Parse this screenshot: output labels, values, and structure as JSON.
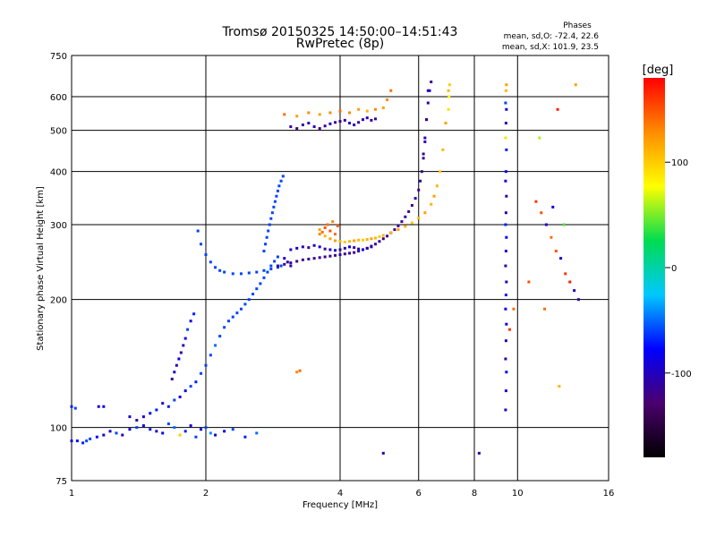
{
  "chart_data": {
    "type": "scatter",
    "title": "Tromsø 20150325 14:50:00–14:51:43",
    "subtitle": "RwPretec (8p)",
    "xlabel": "Frequency [MHz]",
    "ylabel": "Stationary phase Virtual Height [km]",
    "x_scale": "log",
    "y_scale": "log",
    "xlim": [
      1,
      16
    ],
    "ylim": [
      75,
      750
    ],
    "x_ticks": [
      1,
      2,
      4,
      6,
      8,
      10,
      16
    ],
    "y_ticks": [
      75,
      100,
      200,
      300,
      400,
      500,
      600,
      750
    ],
    "grid": true,
    "info": {
      "heading": "Phases",
      "line1": "mean, sd,O: -72.4, 22.6",
      "line2": "mean, sd,X: 101.9, 23.5"
    },
    "colorbar": {
      "label": "[deg]",
      "range": [
        -180,
        180
      ],
      "ticks": [
        100,
        0,
        -100
      ],
      "colors": [
        "#000000",
        "#4b006e",
        "#0000ff",
        "#00c8ff",
        "#00dc50",
        "#ffff00",
        "#ff8c00",
        "#ff0000"
      ]
    },
    "series": [
      {
        "x": [
          1.0,
          1.03,
          1.06,
          1.08,
          1.1,
          1.14,
          1.18,
          1.22,
          1.26,
          1.3,
          1.35,
          1.4,
          1.45,
          1.5,
          1.55,
          1.6,
          1.65,
          1.7,
          1.75,
          1.8,
          1.85,
          1.9,
          1.95,
          2.0,
          2.05,
          2.1,
          2.2,
          2.3,
          2.45,
          2.6
        ],
        "y": [
          93,
          93,
          92,
          93,
          94,
          95,
          96,
          98,
          97,
          96,
          99,
          100,
          101,
          99,
          98,
          97,
          102,
          100,
          96,
          98,
          101,
          95,
          99,
          100,
          97,
          96,
          98,
          99,
          95,
          97
        ],
        "phase": [
          -80,
          -75,
          -70,
          -60,
          -60,
          -80,
          -90,
          -90,
          -60,
          -100,
          -90,
          -60,
          -80,
          -70,
          -100,
          -80,
          -60,
          -50,
          100,
          -70,
          -90,
          -60,
          -80,
          -60,
          -40,
          -90,
          -80,
          -60,
          -70,
          -50
        ]
      },
      {
        "x": [
          1.0,
          1.02,
          1.15,
          1.18,
          1.35,
          1.4,
          1.45,
          1.5,
          1.55,
          1.6,
          1.65,
          1.7,
          1.75,
          1.8,
          1.85,
          1.9,
          1.95,
          2.0,
          2.05,
          2.1,
          2.15,
          2.2,
          2.25,
          2.3,
          2.35,
          2.4,
          2.45,
          2.5,
          2.55,
          2.6,
          2.65,
          2.7,
          2.75,
          2.8,
          2.85,
          2.9
        ],
        "y": [
          112,
          111,
          112,
          112,
          106,
          104,
          106,
          108,
          110,
          114,
          112,
          116,
          118,
          122,
          125,
          128,
          134,
          140,
          148,
          156,
          164,
          172,
          178,
          182,
          186,
          190,
          195,
          200,
          206,
          212,
          218,
          225,
          232,
          240,
          246,
          252
        ],
        "phase": [
          -70,
          -60,
          -90,
          -80,
          -100,
          -110,
          -90,
          -80,
          -70,
          -100,
          -70,
          -60,
          -90,
          -80,
          -60,
          -70,
          -60,
          -60,
          -60,
          -50,
          -60,
          -60,
          -60,
          -60,
          -60,
          -60,
          -60,
          -60,
          -60,
          -60,
          -60,
          -60,
          -60,
          -60,
          -60,
          -60
        ]
      },
      {
        "x": [
          1.68,
          1.7,
          1.72,
          1.74,
          1.76,
          1.78,
          1.8,
          1.82,
          1.85,
          1.88
        ],
        "y": [
          130,
          135,
          140,
          145,
          150,
          156,
          162,
          170,
          178,
          185
        ],
        "phase": [
          -110,
          -90,
          -100,
          -80,
          -110,
          -100,
          -80,
          -60,
          -90,
          -70
        ]
      },
      {
        "x": [
          1.92,
          1.95,
          2.0,
          2.05,
          2.1,
          2.15,
          2.2,
          2.3,
          2.4,
          2.5,
          2.6,
          2.7,
          2.8,
          2.9,
          2.95
        ],
        "y": [
          290,
          270,
          255,
          245,
          238,
          234,
          232,
          230,
          230,
          231,
          232,
          234,
          236,
          238,
          240
        ],
        "phase": [
          -60,
          -60,
          -60,
          -60,
          -60,
          -60,
          -60,
          -60,
          -60,
          -60,
          -60,
          -60,
          -60,
          -60,
          -60
        ]
      },
      {
        "x": [
          2.7,
          2.72,
          2.74,
          2.76,
          2.78,
          2.8,
          2.82,
          2.84,
          2.86,
          2.88,
          2.9,
          2.92,
          2.95,
          2.98,
          3.0,
          3.05,
          3.1
        ],
        "y": [
          260,
          270,
          280,
          290,
          300,
          310,
          320,
          330,
          340,
          350,
          360,
          370,
          380,
          390,
          250,
          245,
          240
        ],
        "phase": [
          -60,
          -60,
          -60,
          -60,
          -60,
          -60,
          -60,
          -60,
          -60,
          -60,
          -60,
          -60,
          -60,
          -60,
          -100,
          -110,
          -110
        ]
      },
      {
        "x": [
          2.9,
          3.0,
          3.1,
          3.2,
          3.3,
          3.4,
          3.5,
          3.6,
          3.7,
          3.8,
          3.9,
          4.0,
          4.1,
          4.2,
          4.3,
          4.4,
          4.5,
          4.6,
          4.7,
          4.8,
          4.9,
          5.0,
          5.1,
          5.2,
          5.3,
          5.4,
          5.5,
          5.6,
          5.7,
          5.8,
          5.9,
          6.0,
          6.05,
          6.1,
          6.15,
          6.2,
          6.25,
          6.3
        ],
        "y": [
          240,
          242,
          244,
          246,
          248,
          249,
          250,
          251,
          252,
          253,
          254,
          255,
          256,
          257,
          258,
          260,
          262,
          264,
          267,
          270,
          274,
          278,
          282,
          287,
          292,
          298,
          305,
          313,
          322,
          333,
          346,
          362,
          380,
          400,
          430,
          470,
          530,
          620
        ],
        "phase": [
          -110,
          -120,
          -110,
          -120,
          -120,
          -110,
          -120,
          -110,
          -120,
          -110,
          -120,
          -110,
          -120,
          -110,
          -120,
          -110,
          -120,
          -110,
          -120,
          -120,
          -110,
          -120,
          -110,
          -120,
          -120,
          -110,
          -120,
          -110,
          -120,
          -120,
          -110,
          -120,
          -110,
          -120,
          -120,
          -110,
          -120,
          -110
        ]
      },
      {
        "x": [
          3.1,
          3.2,
          3.3,
          3.4,
          3.5,
          3.6,
          3.7,
          3.8,
          3.9,
          4.0,
          4.1,
          4.2,
          4.3,
          4.4,
          4.5,
          4.6,
          4.7
        ],
        "y": [
          262,
          264,
          266,
          265,
          268,
          266,
          263,
          262,
          261,
          262,
          264,
          266,
          265,
          263,
          262,
          264,
          266
        ],
        "phase": [
          -100,
          -90,
          -100,
          -120,
          -100,
          -90,
          -110,
          -100,
          -90,
          -110,
          -100,
          -90,
          -110,
          -100,
          -90,
          -110,
          -100
        ]
      },
      {
        "x": [
          3.6,
          3.7,
          3.8,
          3.9,
          4.0,
          4.1,
          4.2,
          4.3,
          4.4,
          4.5,
          4.6,
          4.7,
          4.8,
          4.9,
          5.0,
          5.2,
          5.4,
          5.6,
          5.8,
          6.0,
          6.2,
          6.4,
          6.5,
          6.6,
          6.7,
          6.8,
          6.9,
          7.0
        ],
        "y": [
          285,
          282,
          278,
          275,
          274,
          273,
          274,
          275,
          276,
          276,
          277,
          278,
          279,
          281,
          283,
          287,
          292,
          297,
          303,
          311,
          320,
          335,
          350,
          370,
          400,
          450,
          520,
          620
        ],
        "phase": [
          130,
          110,
          120,
          120,
          110,
          100,
          110,
          120,
          110,
          100,
          110,
          120,
          110,
          100,
          110,
          110,
          120,
          110,
          100,
          110,
          120,
          110,
          120,
          110,
          100,
          110,
          120,
          110
        ]
      },
      {
        "x": [
          3.7,
          3.75,
          3.8,
          3.85,
          3.9,
          3.95,
          3.6,
          3.65
        ],
        "y": [
          295,
          300,
          290,
          305,
          285,
          298,
          292,
          288
        ],
        "phase": [
          150,
          140,
          150,
          130,
          140,
          150,
          120,
          140
        ]
      },
      {
        "x": [
          3.1,
          3.2,
          3.3,
          3.4,
          3.5,
          3.6,
          3.7,
          3.8,
          3.9,
          4.0,
          4.1,
          4.2,
          4.3,
          4.4,
          4.5,
          4.6,
          4.7,
          4.8
        ],
        "y": [
          510,
          505,
          515,
          520,
          510,
          505,
          512,
          518,
          522,
          525,
          528,
          520,
          515,
          522,
          530,
          535,
          528,
          532
        ],
        "phase": [
          -110,
          -120,
          -110,
          -100,
          -110,
          -120,
          -110,
          -100,
          -110,
          -120,
          -110,
          -100,
          -110,
          -120,
          -110,
          -100,
          -110,
          -120
        ]
      },
      {
        "x": [
          3.0,
          3.2,
          3.4,
          3.6,
          3.8,
          4.0,
          4.2,
          4.4,
          4.6,
          4.8,
          5.0,
          5.1,
          5.2
        ],
        "y": [
          545,
          540,
          550,
          545,
          550,
          555,
          550,
          560,
          555,
          560,
          565,
          590,
          620
        ],
        "phase": [
          140,
          120,
          130,
          120,
          130,
          140,
          130,
          120,
          110,
          130,
          120,
          130,
          140
        ]
      },
      {
        "x": [
          6.15,
          6.2,
          6.25,
          6.3,
          6.35,
          6.4
        ],
        "y": [
          440,
          480,
          530,
          580,
          620,
          650
        ],
        "phase": [
          -110,
          -100,
          -120,
          -110,
          -100,
          -120
        ]
      },
      {
        "x": [
          7.0,
          7.02,
          7.04
        ],
        "y": [
          560,
          600,
          640
        ],
        "phase": [
          90,
          80,
          100
        ]
      },
      {
        "x": [
          9.4,
          9.42,
          9.44,
          9.4,
          9.42,
          9.44,
          9.4,
          9.42,
          9.44,
          9.4,
          9.42,
          9.44,
          9.4,
          9.42,
          9.44,
          9.4,
          9.42,
          9.44,
          9.4,
          9.42,
          9.44,
          9.4,
          9.42,
          9.44
        ],
        "y": [
          110,
          122,
          135,
          145,
          160,
          175,
          190,
          205,
          220,
          240,
          260,
          280,
          300,
          320,
          350,
          380,
          400,
          450,
          480,
          520,
          560,
          580,
          620,
          640
        ],
        "phase": [
          -100,
          -90,
          -80,
          -110,
          -100,
          -90,
          -80,
          -70,
          -100,
          -110,
          -90,
          -80,
          -70,
          -100,
          -110,
          -90,
          -80,
          -70,
          90,
          -100,
          -90,
          -60,
          110,
          120
        ]
      },
      {
        "x": [
          11.0,
          11.3,
          11.6,
          11.9,
          12.2,
          12.5,
          12.8,
          13.1,
          13.4,
          13.7,
          11.2,
          12.0,
          12.7,
          13.5,
          11.5,
          12.3
        ],
        "y": [
          340,
          320,
          300,
          280,
          260,
          250,
          230,
          220,
          210,
          200,
          480,
          330,
          300,
          640,
          190,
          560
        ],
        "phase": [
          160,
          150,
          -100,
          140,
          150,
          -90,
          160,
          170,
          -100,
          -110,
          60,
          -80,
          40,
          120,
          140,
          170
        ]
      },
      {
        "x": [
          3.2,
          3.25,
          5.0,
          8.2,
          9.6,
          10.6,
          12.4,
          9.8
        ],
        "y": [
          135,
          136,
          87,
          87,
          170,
          220,
          125,
          190
        ],
        "phase": [
          130,
          140,
          -110,
          -110,
          160,
          150,
          110,
          140
        ]
      }
    ]
  }
}
